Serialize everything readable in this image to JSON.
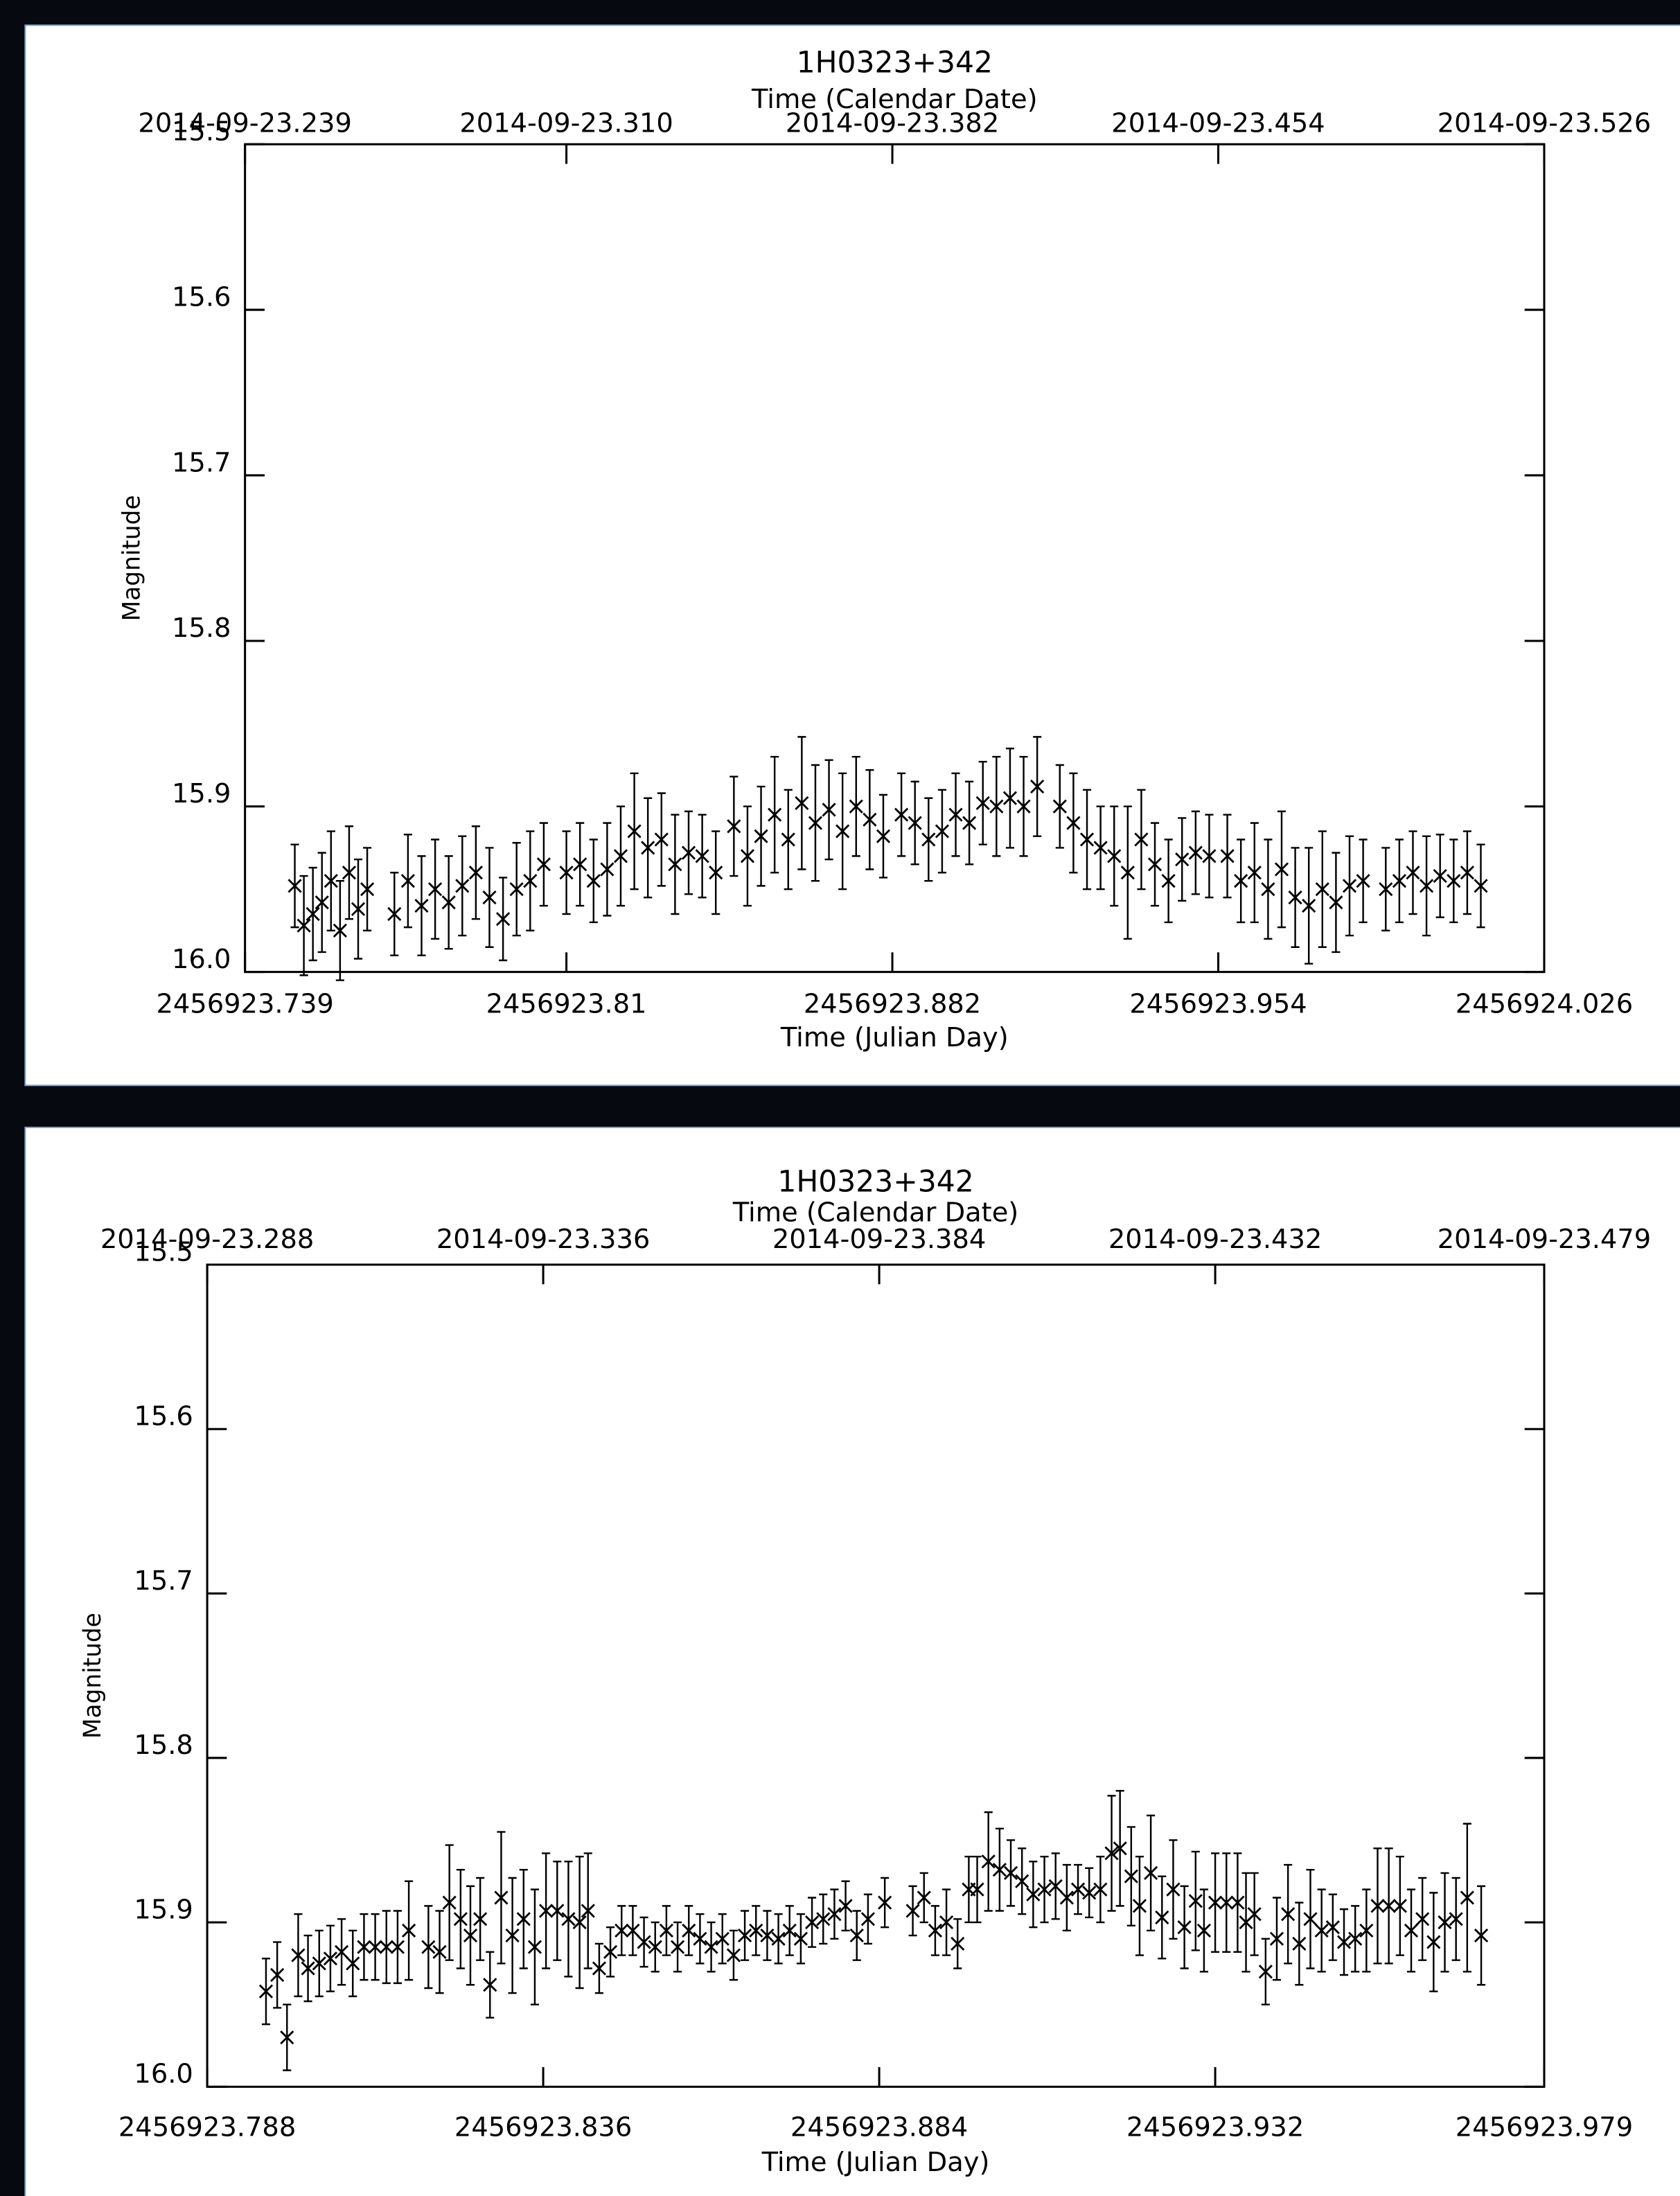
{
  "chart_data": [
    {
      "type": "scatter",
      "title": "1H0323+342",
      "x2label": "Time (Calendar Date)",
      "xlabel": "Time (Julian Day)",
      "ylabel": "Magnitude",
      "color": "#000000",
      "xlim": [
        2456923.739,
        2456924.026
      ],
      "xticks": [
        2456923.739,
        2456923.81,
        2456923.882,
        2456923.954,
        2456924.026
      ],
      "x2ticks": [
        {
          "value": 2456923.739,
          "label": "2014-09-23.239"
        },
        {
          "value": 2456923.81,
          "label": "2014-09-23.310"
        },
        {
          "value": 2456923.882,
          "label": "2014-09-23.382"
        },
        {
          "value": 2456923.954,
          "label": "2014-09-23.454"
        },
        {
          "value": 2456924.026,
          "label": "2014-09-23.526"
        }
      ],
      "ylim": [
        16.0,
        15.5
      ],
      "yticks": [
        15.5,
        15.6,
        15.7,
        15.8,
        15.9,
        {
          "value": 16.0,
          "label": "16.0"
        }
      ],
      "x": [
        2456923.75,
        2456923.752,
        2456923.754,
        2456923.756,
        2456923.758,
        2456923.76,
        2456923.762,
        2456923.764,
        2456923.766,
        2456923.772,
        2456923.775,
        2456923.778,
        2456923.781,
        2456923.784,
        2456923.787,
        2456923.79,
        2456923.793,
        2456923.796,
        2456923.799,
        2456923.802,
        2456923.805,
        2456923.81,
        2456923.813,
        2456923.816,
        2456923.819,
        2456923.822,
        2456923.825,
        2456923.828,
        2456923.831,
        2456923.834,
        2456923.837,
        2456923.84,
        2456923.843,
        2456923.847,
        2456923.85,
        2456923.853,
        2456923.856,
        2456923.859,
        2456923.862,
        2456923.865,
        2456923.868,
        2456923.871,
        2456923.874,
        2456923.877,
        2456923.88,
        2456923.884,
        2456923.887,
        2456923.89,
        2456923.893,
        2456923.896,
        2456923.899,
        2456923.902,
        2456923.905,
        2456923.908,
        2456923.911,
        2456923.914,
        2456923.919,
        2456923.922,
        2456923.925,
        2456923.928,
        2456923.931,
        2456923.934,
        2456923.937,
        2456923.94,
        2456923.943,
        2456923.946,
        2456923.949,
        2456923.952,
        2456923.956,
        2456923.959,
        2456923.962,
        2456923.965,
        2456923.968,
        2456923.971,
        2456923.974,
        2456923.977,
        2456923.98,
        2456923.983,
        2456923.986,
        2456923.991,
        2456923.994,
        2456923.997,
        2456924.0,
        2456924.003,
        2456924.006,
        2456924.009,
        2456924.012
      ],
      "values": [
        15.948,
        15.972,
        15.965,
        15.958,
        15.945,
        15.975,
        15.94,
        15.962,
        15.95,
        15.965,
        15.945,
        15.96,
        15.95,
        15.958,
        15.948,
        15.94,
        15.955,
        15.968,
        15.95,
        15.945,
        15.935,
        15.94,
        15.935,
        15.945,
        15.938,
        15.93,
        15.915,
        15.925,
        15.92,
        15.935,
        15.928,
        15.93,
        15.94,
        15.912,
        15.93,
        15.918,
        15.905,
        15.92,
        15.898,
        15.91,
        15.902,
        15.915,
        15.9,
        15.908,
        15.918,
        15.905,
        15.91,
        15.92,
        15.915,
        15.905,
        15.91,
        15.898,
        15.9,
        15.895,
        15.9,
        15.888,
        15.9,
        15.91,
        15.92,
        15.925,
        15.93,
        15.94,
        15.92,
        15.935,
        15.945,
        15.932,
        15.928,
        15.93,
        15.93,
        15.945,
        15.94,
        15.95,
        15.938,
        15.955,
        15.96,
        15.95,
        15.958,
        15.948,
        15.945,
        15.95,
        15.945,
        15.94,
        15.948,
        15.942,
        15.945,
        15.94,
        15.948
      ],
      "errors": [
        0.025,
        0.03,
        0.028,
        0.03,
        0.03,
        0.03,
        0.028,
        0.03,
        0.025,
        0.025,
        0.028,
        0.03,
        0.03,
        0.028,
        0.03,
        0.028,
        0.03,
        0.025,
        0.028,
        0.03,
        0.025,
        0.025,
        0.025,
        0.025,
        0.028,
        0.03,
        0.035,
        0.03,
        0.028,
        0.03,
        0.025,
        0.025,
        0.025,
        0.03,
        0.03,
        0.03,
        0.035,
        0.03,
        0.04,
        0.035,
        0.03,
        0.035,
        0.03,
        0.03,
        0.025,
        0.025,
        0.025,
        0.025,
        0.025,
        0.025,
        0.025,
        0.025,
        0.03,
        0.03,
        0.03,
        0.03,
        0.025,
        0.03,
        0.03,
        0.025,
        0.03,
        0.04,
        0.03,
        0.025,
        0.025,
        0.025,
        0.025,
        0.025,
        0.025,
        0.025,
        0.03,
        0.03,
        0.035,
        0.03,
        0.035,
        0.035,
        0.03,
        0.03,
        0.025,
        0.025,
        0.025,
        0.025,
        0.03,
        0.025,
        0.025,
        0.025,
        0.025
      ]
    },
    {
      "type": "scatter",
      "title": "1H0323+342",
      "x2label": "Time (Calendar Date)",
      "xlabel": "Time (Julian Day)",
      "ylabel": "Magnitude",
      "color": "#000000",
      "xlim": [
        2456923.788,
        2456923.979
      ],
      "xticks": [
        2456923.788,
        2456923.836,
        2456923.884,
        2456923.932,
        2456923.979
      ],
      "x2ticks": [
        {
          "value": 2456923.788,
          "label": "2014-09-23.288"
        },
        {
          "value": 2456923.836,
          "label": "2014-09-23.336"
        },
        {
          "value": 2456923.884,
          "label": "2014-09-23.384"
        },
        {
          "value": 2456923.932,
          "label": "2014-09-23.432"
        },
        {
          "value": 2456923.979,
          "label": "2014-09-23.479"
        }
      ],
      "ylim": [
        16.0,
        15.5
      ],
      "yticks": [
        15.5,
        15.6,
        15.7,
        15.8,
        15.9,
        {
          "value": 16.0,
          "label": "16.0"
        }
      ],
      "x": [
        2456923.7964,
        2456923.798,
        2456923.7994,
        2456923.801,
        2456923.8024,
        2456923.804,
        2456923.8056,
        2456923.8072,
        2456923.8088,
        2456923.8104,
        2456923.812,
        2456923.8136,
        2456923.8152,
        2456923.8168,
        2456923.8196,
        2456923.8212,
        2456923.8226,
        2456923.8242,
        2456923.8256,
        2456923.827,
        2456923.8284,
        2456923.83,
        2456923.8316,
        2456923.8332,
        2456923.8348,
        2456923.8364,
        2456923.838,
        2456923.8396,
        2456923.8412,
        2456923.8424,
        2456923.844,
        2456923.8456,
        2456923.8472,
        2456923.8488,
        2456923.8504,
        2456923.852,
        2456923.8536,
        2456923.8552,
        2456923.8568,
        2456923.8584,
        2456923.86,
        2456923.8616,
        2456923.8632,
        2456923.8648,
        2456923.8664,
        2456923.868,
        2456923.8696,
        2456923.8712,
        2456923.8728,
        2456923.8744,
        2456923.876,
        2456923.8776,
        2456923.8792,
        2456923.8808,
        2456923.8824,
        2456923.8848,
        2456923.8888,
        2456923.8904,
        2456923.892,
        2456923.8936,
        2456923.8952,
        2456923.8968,
        2456923.898,
        2456923.8996,
        2456923.9012,
        2456923.9028,
        2456923.9044,
        2456923.906,
        2456923.9076,
        2456923.9092,
        2456923.9108,
        2456923.9124,
        2456923.914,
        2456923.9156,
        2456923.9172,
        2456923.9184,
        2456923.92,
        2456923.9212,
        2456923.9228,
        2456923.9244,
        2456923.926,
        2456923.9276,
        2456923.9292,
        2456923.9304,
        2456923.932,
        2456923.9336,
        2456923.9352,
        2456923.9364,
        2456923.9376,
        2456923.9392,
        2456923.9408,
        2456923.9424,
        2456923.944,
        2456923.9456,
        2456923.9472,
        2456923.9488,
        2456923.9504,
        2456923.952,
        2456923.9536,
        2456923.9552,
        2456923.9568,
        2456923.9584,
        2456923.96,
        2456923.9616,
        2456923.9632,
        2456923.9648,
        2456923.9664,
        2456923.968,
        2456923.97
      ],
      "values": [
        15.942,
        15.932,
        15.97,
        15.92,
        15.928,
        15.925,
        15.922,
        15.918,
        15.925,
        15.915,
        15.915,
        15.915,
        15.915,
        15.905,
        15.915,
        15.918,
        15.888,
        15.898,
        15.908,
        15.898,
        15.938,
        15.885,
        15.908,
        15.898,
        15.915,
        15.893,
        15.893,
        15.898,
        15.9,
        15.893,
        15.928,
        15.918,
        15.905,
        15.905,
        15.912,
        15.915,
        15.905,
        15.915,
        15.905,
        15.91,
        15.915,
        15.91,
        15.92,
        15.908,
        15.905,
        15.908,
        15.91,
        15.905,
        15.91,
        15.9,
        15.898,
        15.895,
        15.89,
        15.908,
        15.898,
        15.888,
        15.893,
        15.885,
        15.905,
        15.9,
        15.913,
        15.88,
        15.88,
        15.863,
        15.868,
        15.87,
        15.875,
        15.883,
        15.88,
        15.878,
        15.885,
        15.88,
        15.882,
        15.88,
        15.858,
        15.855,
        15.872,
        15.89,
        15.87,
        15.897,
        15.88,
        15.903,
        15.887,
        15.905,
        15.888,
        15.888,
        15.888,
        15.9,
        15.895,
        15.93,
        15.91,
        15.895,
        15.913,
        15.898,
        15.905,
        15.903,
        15.912,
        15.91,
        15.905,
        15.89,
        15.89,
        15.89,
        15.905,
        15.898,
        15.912,
        15.9,
        15.898,
        15.885,
        15.908
      ],
      "errors": [
        0.02,
        0.02,
        0.02,
        0.025,
        0.02,
        0.02,
        0.02,
        0.02,
        0.02,
        0.02,
        0.02,
        0.022,
        0.022,
        0.03,
        0.025,
        0.025,
        0.035,
        0.03,
        0.03,
        0.025,
        0.02,
        0.04,
        0.035,
        0.03,
        0.035,
        0.035,
        0.03,
        0.035,
        0.04,
        0.035,
        0.015,
        0.015,
        0.015,
        0.015,
        0.015,
        0.015,
        0.015,
        0.015,
        0.015,
        0.015,
        0.015,
        0.015,
        0.015,
        0.015,
        0.015,
        0.015,
        0.015,
        0.015,
        0.015,
        0.015,
        0.015,
        0.015,
        0.015,
        0.015,
        0.015,
        0.015,
        0.015,
        0.015,
        0.015,
        0.02,
        0.015,
        0.02,
        0.02,
        0.03,
        0.025,
        0.02,
        0.02,
        0.02,
        0.02,
        0.02,
        0.02,
        0.015,
        0.015,
        0.02,
        0.035,
        0.035,
        0.03,
        0.03,
        0.035,
        0.025,
        0.03,
        0.025,
        0.03,
        0.025,
        0.03,
        0.03,
        0.03,
        0.03,
        0.025,
        0.02,
        0.025,
        0.03,
        0.025,
        0.03,
        0.025,
        0.02,
        0.02,
        0.02,
        0.025,
        0.035,
        0.035,
        0.03,
        0.025,
        0.025,
        0.03,
        0.03,
        0.025,
        0.045,
        0.03
      ]
    }
  ]
}
